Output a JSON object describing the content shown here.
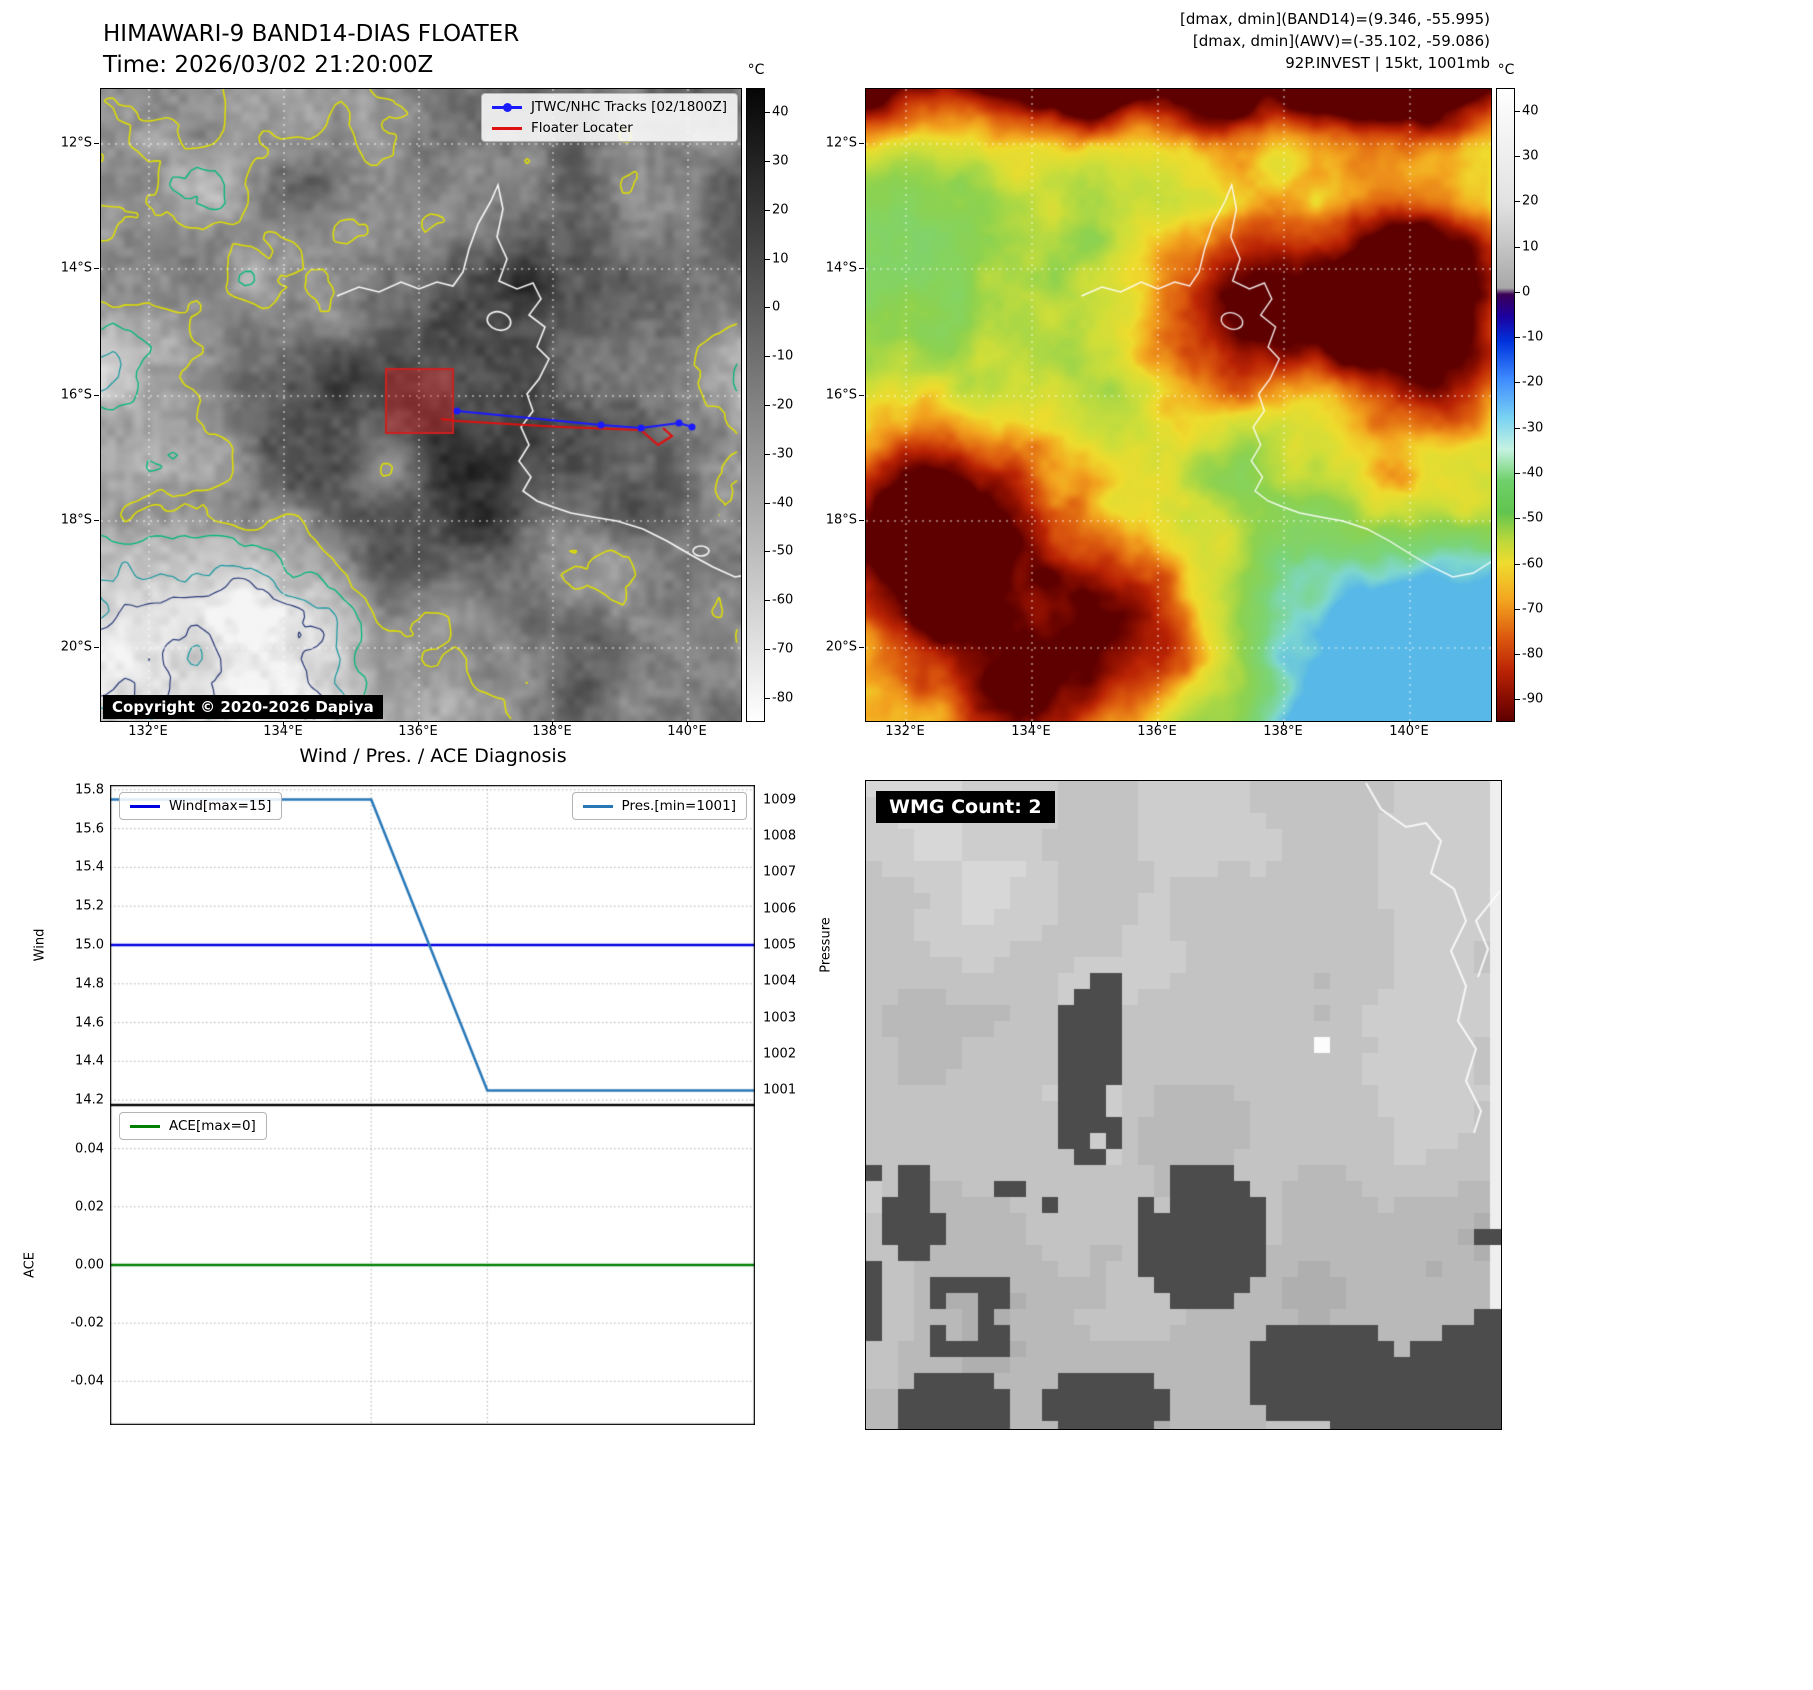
{
  "colors": {
    "track": "#1a1aff",
    "floater": "#e01010",
    "locator_box": "#cc2020"
  },
  "band14_panel": {
    "title": "HIMAWARI-9 BAND14-DIAS FLOATER",
    "time_line": "Time: 2026/03/02 21:20:00Z",
    "legend": {
      "track": "JTWC/NHC Tracks [02/1800Z]",
      "floater": "Floater Locater"
    },
    "copyright": "Copyright © 2020-2026 Dapiya",
    "colorbar": {
      "unit": "°C",
      "ticks": [
        "40",
        "30",
        "20",
        "10",
        "0",
        "-10",
        "-20",
        "-30",
        "-40",
        "-50",
        "-60",
        "-70",
        "-80"
      ]
    },
    "lat_ticks": [
      "12°S",
      "14°S",
      "16°S",
      "18°S",
      "20°S"
    ],
    "lon_ticks": [
      "132°E",
      "134°E",
      "136°E",
      "138°E",
      "140°E"
    ]
  },
  "awv_panel": {
    "info_line1": "[dmax, dmin](BAND14)=(9.346, -55.995)",
    "info_line2": "[dmax, dmin](AWV)=(-35.102, -59.086)",
    "info_line3": "92P.INVEST | 15kt, 1001mb",
    "colorbar": {
      "unit": "°C",
      "ticks": [
        "40",
        "30",
        "20",
        "10",
        "0",
        "-10",
        "-20",
        "-30",
        "-40",
        "-50",
        "-60",
        "-70",
        "-80",
        "-90"
      ]
    },
    "lat_ticks": [
      "12°S",
      "14°S",
      "16°S",
      "18°S",
      "20°S"
    ],
    "lon_ticks": [
      "132°E",
      "134°E",
      "136°E",
      "138°E",
      "140°E"
    ]
  },
  "wmg_panel": {
    "count_label": "WMG Count: 2"
  },
  "chart_data": [
    {
      "type": "line",
      "title": "Wind / Pres. / ACE Diagnosis",
      "left_ylabel": "Wind",
      "right_ylabel": "Pressure",
      "left_ylim": [
        14.175,
        15.825
      ],
      "right_ylim": [
        1000.6,
        1009.4
      ],
      "left_ticks": [
        "15.8",
        "15.6",
        "15.4",
        "15.2",
        "15.0",
        "14.8",
        "14.6",
        "14.4",
        "14.2"
      ],
      "right_ticks": [
        "1009",
        "1008",
        "1007",
        "1006",
        "1005",
        "1004",
        "1003",
        "1002",
        "1001"
      ],
      "x_gridlines": [
        0.405,
        0.585
      ],
      "grid": true,
      "series": [
        {
          "name": "Wind[max=15]",
          "axis": "left",
          "color": "#0000e0",
          "x": [
            0,
            1
          ],
          "values": [
            15,
            15
          ]
        },
        {
          "name": "Pres.[min=1001]",
          "axis": "right",
          "color": "#2878b8",
          "x": [
            0,
            0.405,
            0.585,
            1
          ],
          "values": [
            1009,
            1009,
            1001,
            1001
          ]
        }
      ]
    },
    {
      "type": "line",
      "ylabel": "ACE",
      "ylim": [
        -0.055,
        0.055
      ],
      "yticks": [
        "0.04",
        "0.02",
        "0.00",
        "-0.02",
        "-0.04"
      ],
      "x_gridlines": [
        0.405,
        0.585
      ],
      "grid": true,
      "series": [
        {
          "name": "ACE[max=0]",
          "axis": "left",
          "color": "#008000",
          "x": [
            0,
            1
          ],
          "values": [
            0,
            0
          ]
        }
      ]
    }
  ]
}
